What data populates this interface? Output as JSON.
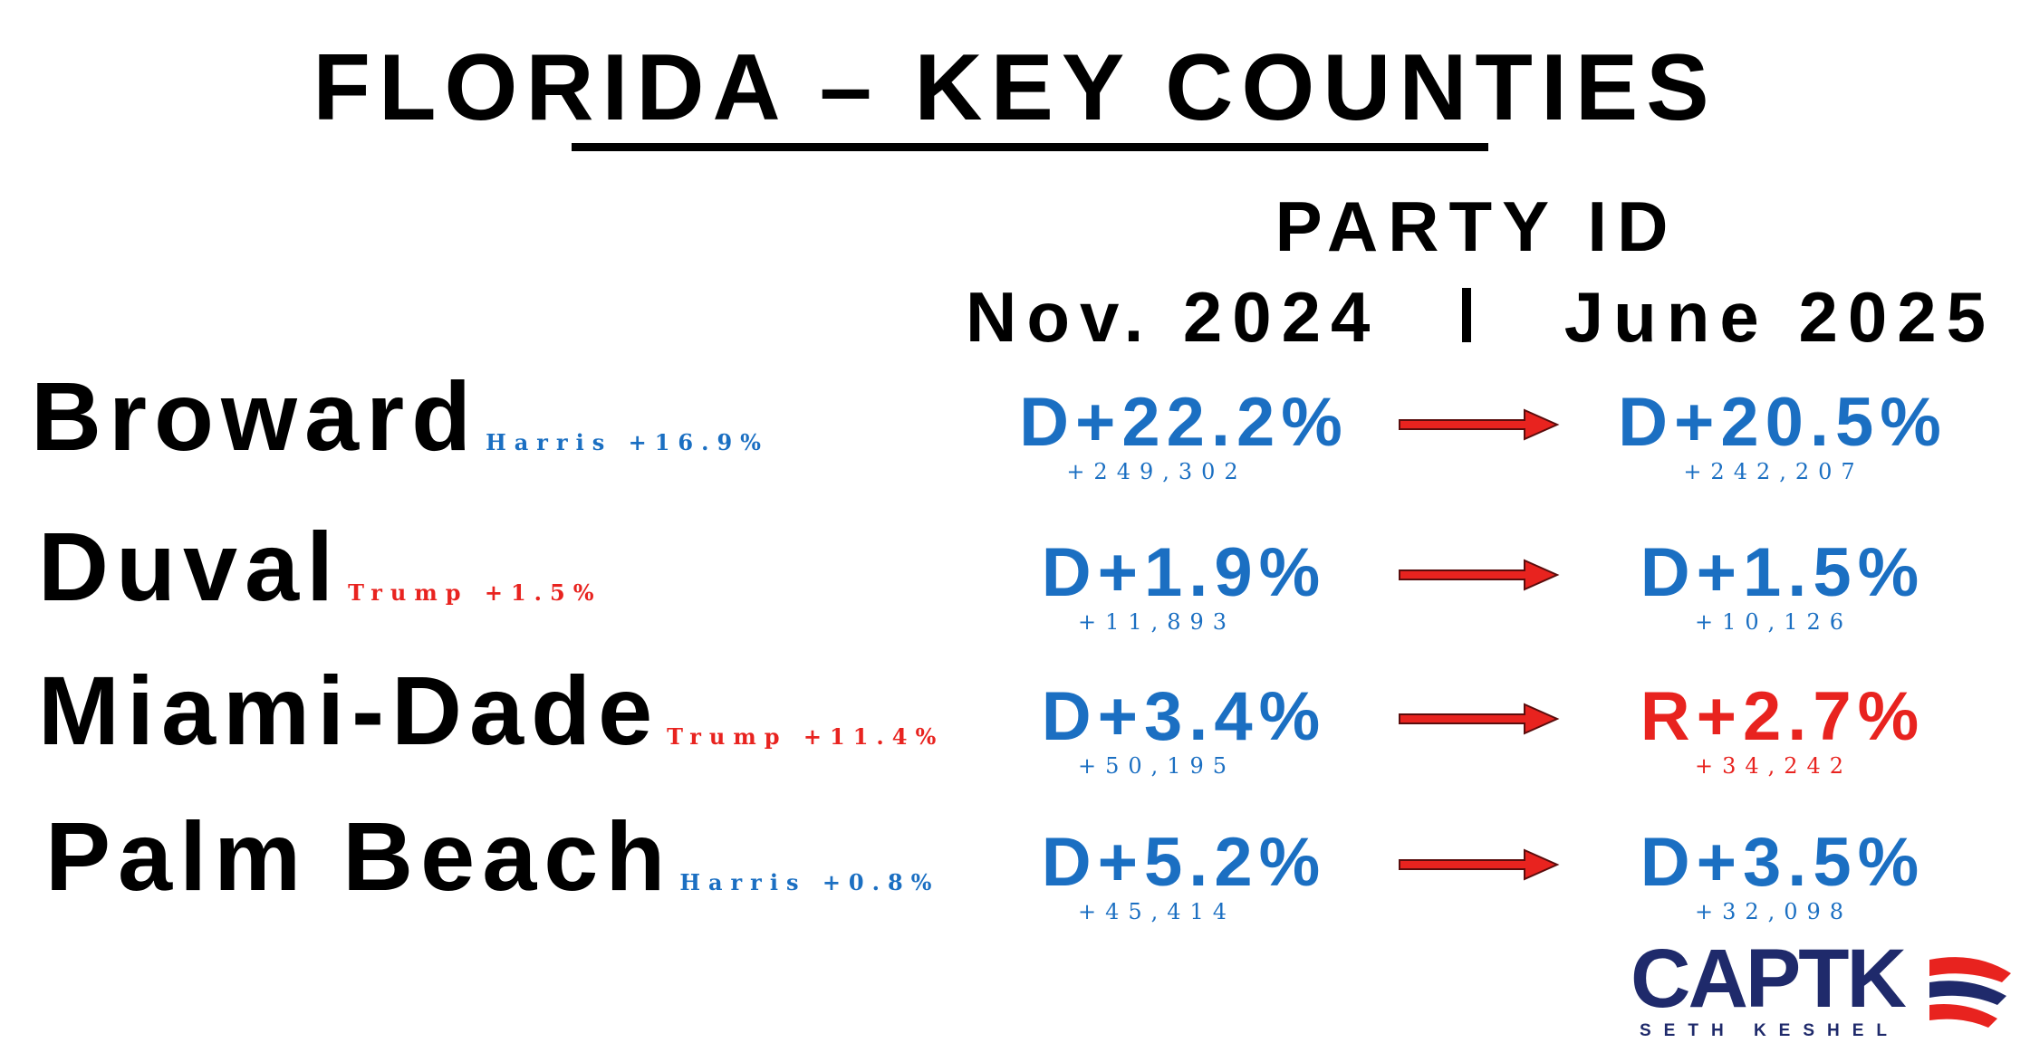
{
  "header": {
    "title": "FLORIDA – KEY COUNTIES",
    "subtitle": "PARTY ID",
    "col_left": "Nov. 2024",
    "col_right": "June 2025"
  },
  "rows": [
    {
      "county": "Broward",
      "result": "Harris +16.9%",
      "result_color": "#1b6fc2",
      "nov": {
        "margin": "D+22.2%",
        "votes": "+249,302",
        "color": "#1b6fc2"
      },
      "june": {
        "margin": "D+20.5%",
        "votes": "+242,207",
        "color": "#1b6fc2"
      }
    },
    {
      "county": "Duval",
      "result": "Trump +1.5%",
      "result_color": "#e8231f",
      "nov": {
        "margin": "D+1.9%",
        "votes": "+11,893",
        "color": "#1b6fc2"
      },
      "june": {
        "margin": "D+1.5%",
        "votes": "+10,126",
        "color": "#1b6fc2"
      }
    },
    {
      "county": "Miami-Dade",
      "result": "Trump +11.4%",
      "result_color": "#e8231f",
      "nov": {
        "margin": "D+3.4%",
        "votes": "+50,195",
        "color": "#1b6fc2"
      },
      "june": {
        "margin": "R+2.7%",
        "votes": "+34,242",
        "color": "#e8231f"
      }
    },
    {
      "county": "Palm Beach",
      "result": "Harris +0.8%",
      "result_color": "#1b6fc2",
      "nov": {
        "margin": "D+5.2%",
        "votes": "+45,414",
        "color": "#1b6fc2"
      },
      "june": {
        "margin": "D+3.5%",
        "votes": "+32,098",
        "color": "#1b6fc2"
      }
    }
  ],
  "logo": {
    "brand": "CAPTK",
    "name": "SETH KESHEL"
  }
}
